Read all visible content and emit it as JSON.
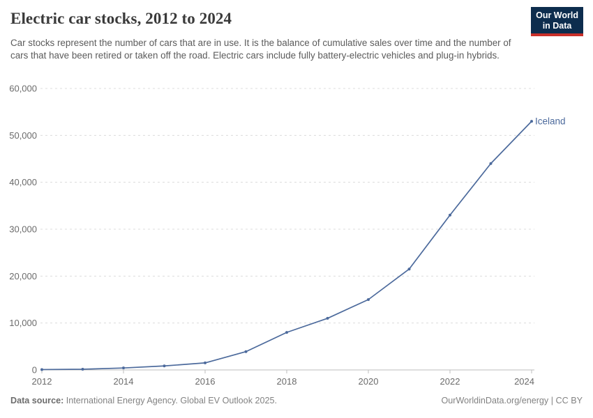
{
  "header": {
    "title": "Electric car stocks, 2012 to 2024",
    "logo_line1": "Our World",
    "logo_line2": "in Data"
  },
  "subtitle": "Car stocks represent the number of cars that are in use. It is the balance of cumulative sales over time and the number of cars that have been retired or taken off the road. Electric cars include fully battery-electric vehicles and plug-in hybrids.",
  "chart_data": {
    "type": "line",
    "title": "Electric car stocks, 2012 to 2024",
    "x": [
      2012,
      2013,
      2014,
      2015,
      2016,
      2017,
      2018,
      2019,
      2020,
      2021,
      2022,
      2023,
      2024
    ],
    "series": [
      {
        "name": "Iceland",
        "color": "#4c6a9c",
        "values": [
          80,
          150,
          420,
          850,
          1500,
          3900,
          8000,
          11000,
          15000,
          21500,
          33000,
          44000,
          53000
        ]
      }
    ],
    "xlabel": "",
    "ylabel": "",
    "xlim": [
      2012,
      2024
    ],
    "ylim": [
      0,
      60000
    ],
    "yticks": [
      0,
      10000,
      20000,
      30000,
      40000,
      50000,
      60000
    ],
    "xticks": [
      2012,
      2014,
      2016,
      2018,
      2020,
      2022,
      2024
    ],
    "grid": "horizontal-dashed",
    "legend_position": "end-of-line-label"
  },
  "footer": {
    "source_bold": "Data source:",
    "source_rest": " International Energy Agency. Global EV Outlook 2025.",
    "credit": "OurWorldinData.org/energy | CC BY"
  },
  "colors": {
    "accent_line": "#4c6a9c",
    "logo_bg": "#0d2d4e",
    "logo_stripe": "#c9302a",
    "grid": "#dcdcdc",
    "axis": "#bdbdbd",
    "tick_label": "#6b6b6b",
    "title_text": "#3a3a3a",
    "subtitle_text": "#5b5b5b",
    "footer_text": "#828282"
  }
}
